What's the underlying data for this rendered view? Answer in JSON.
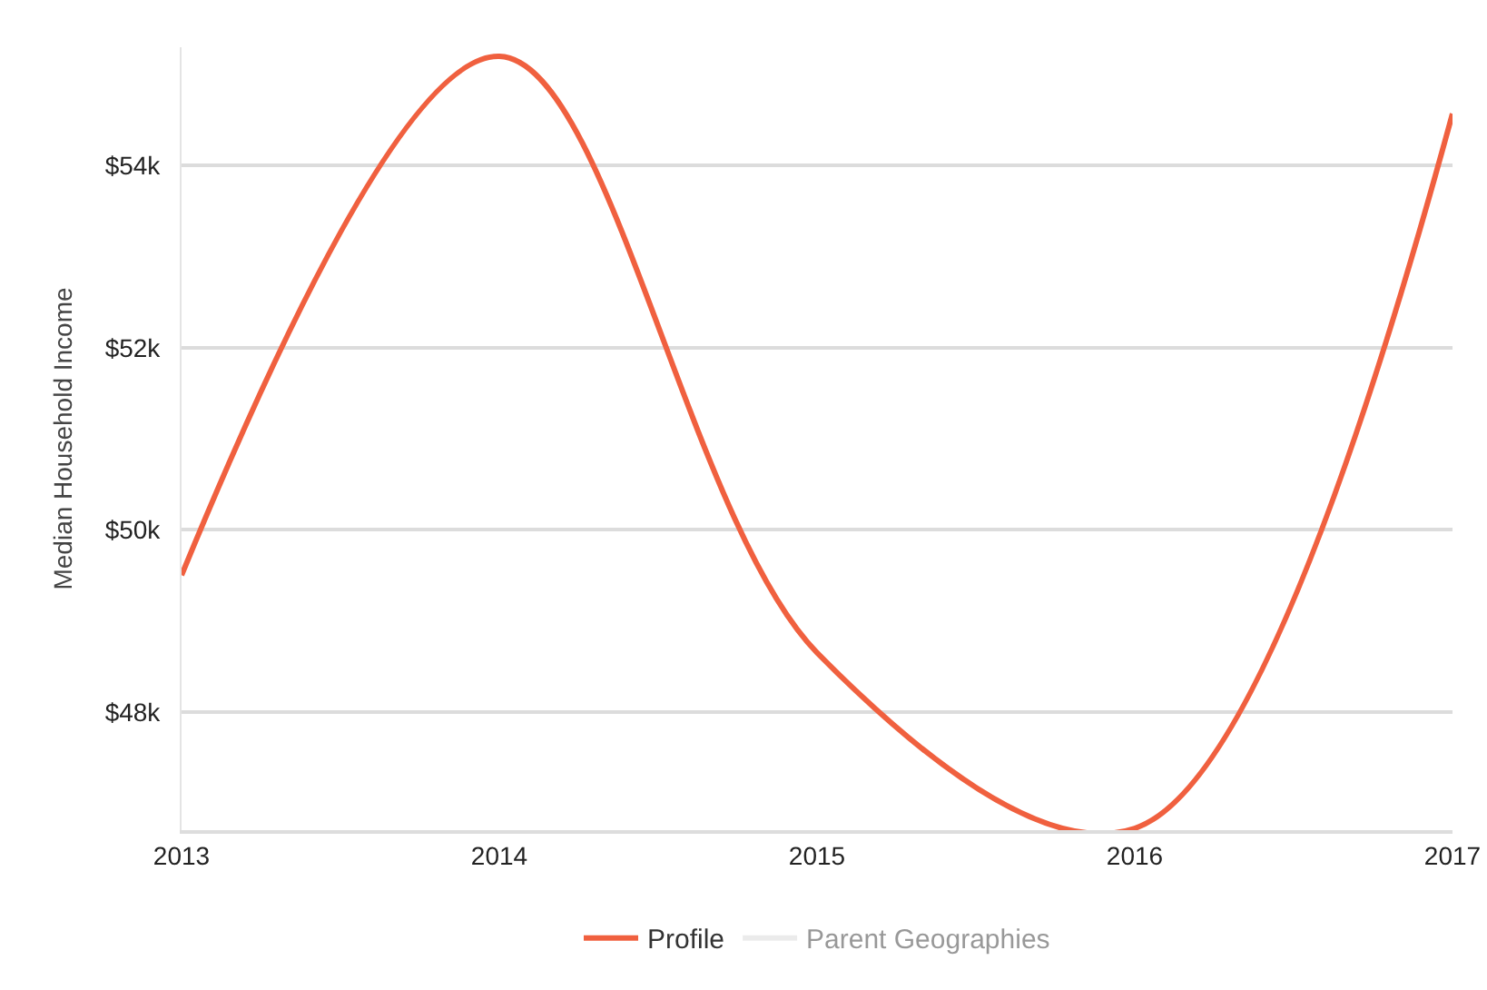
{
  "chart_data": {
    "type": "line",
    "ylabel": "Median Household Income",
    "x": [
      2013,
      2014,
      2015,
      2016,
      2017
    ],
    "series": [
      {
        "name": "Profile",
        "color": "#f0603f",
        "values": [
          49500,
          55200,
          48650,
          46720,
          54570
        ]
      },
      {
        "name": "Parent Geographies",
        "color": "#d9d9d9",
        "values": [
          null,
          null,
          null,
          null,
          null
        ]
      }
    ],
    "xlim": [
      2013,
      2017
    ],
    "xticks": [
      2013,
      2014,
      2015,
      2016,
      2017
    ],
    "ylim": [
      46700,
      55300
    ],
    "yticks": [
      {
        "value": 48000,
        "label": "$48k"
      },
      {
        "value": 50000,
        "label": "$50k"
      },
      {
        "value": 52000,
        "label": "$52k"
      },
      {
        "value": 54000,
        "label": "$54k"
      }
    ],
    "grid": "y",
    "legend": "bottom",
    "marker": "none",
    "line_style": "solid"
  }
}
